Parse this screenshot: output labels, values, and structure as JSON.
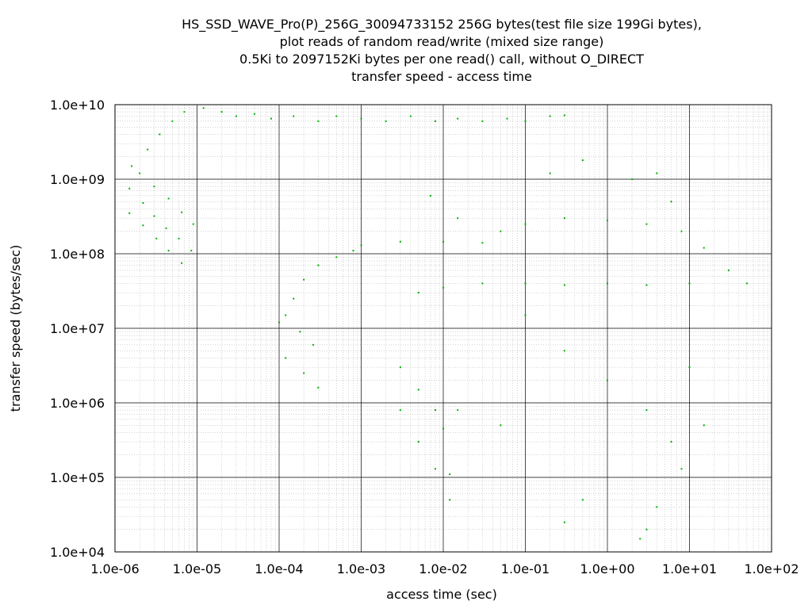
{
  "chart_data": {
    "type": "scatter",
    "title_lines": [
      "HS_SSD_WAVE_Pro(P)_256G_30094733152 256G bytes(test file size 199Gi bytes),",
      "plot reads of random read/write (mixed size range)",
      "0.5Ki to 2097152Ki bytes per one read() call, without O_DIRECT",
      "transfer speed - access time"
    ],
    "xlabel": "access time (sec)",
    "ylabel": "transfer speed (bytes/sec)",
    "x_scale": "log",
    "y_scale": "log",
    "xlim": [
      1e-06,
      100
    ],
    "ylim": [
      10000.0,
      10000000000.0
    ],
    "x_ticks": [
      "1.0e-06",
      "1.0e-05",
      "1.0e-04",
      "1.0e-03",
      "1.0e-02",
      "1.0e-01",
      "1.0e+00",
      "1.0e+01",
      "1.0e+02"
    ],
    "y_ticks": [
      "1.0e+04",
      "1.0e+05",
      "1.0e+06",
      "1.0e+07",
      "1.0e+08",
      "1.0e+09",
      "1.0e+10"
    ],
    "grid": true,
    "point_color": "#00b000",
    "series": [
      {
        "name": "",
        "points": [
          [
            1.5e-06,
            750000000.0
          ],
          [
            2.2e-06,
            480000000.0
          ],
          [
            3e-06,
            320000000.0
          ],
          [
            4.2e-06,
            220000000.0
          ],
          [
            6e-06,
            160000000.0
          ],
          [
            8.5e-06,
            110000000.0
          ],
          [
            1.5e-06,
            350000000.0
          ],
          [
            2.2e-06,
            240000000.0
          ],
          [
            3.2e-06,
            160000000.0
          ],
          [
            4.5e-06,
            110000000.0
          ],
          [
            6.5e-06,
            75000000.0
          ],
          [
            2e-06,
            1200000000.0
          ],
          [
            3e-06,
            800000000.0
          ],
          [
            4.5e-06,
            550000000.0
          ],
          [
            6.5e-06,
            360000000.0
          ],
          [
            9e-06,
            250000000.0
          ],
          [
            1.6e-06,
            1500000000.0
          ],
          [
            2.5e-06,
            2500000000.0
          ],
          [
            3.5e-06,
            4000000000.0
          ],
          [
            5e-06,
            6000000000.0
          ],
          [
            7e-06,
            8000000000.0
          ],
          [
            1.2e-05,
            9000000000.0
          ],
          [
            2e-05,
            8000000000.0
          ],
          [
            3e-05,
            7000000000.0
          ],
          [
            5e-05,
            7500000000.0
          ],
          [
            8e-05,
            6500000000.0
          ],
          [
            0.00015,
            7000000000.0
          ],
          [
            0.0003,
            6000000000.0
          ],
          [
            0.0005,
            7000000000.0
          ],
          [
            0.001,
            6500000000.0
          ],
          [
            0.002,
            6000000000.0
          ],
          [
            0.004,
            7000000000.0
          ],
          [
            0.008,
            6000000000.0
          ],
          [
            0.015,
            6500000000.0
          ],
          [
            0.03,
            6000000000.0
          ],
          [
            0.06,
            6500000000.0
          ],
          [
            0.1,
            6000000000.0
          ],
          [
            0.2,
            7000000000.0
          ],
          [
            0.3,
            7200000000.0
          ],
          [
            0.0001,
            12000000.0
          ],
          [
            0.00015,
            25000000.0
          ],
          [
            0.0002,
            45000000.0
          ],
          [
            0.0003,
            70000000.0
          ],
          [
            0.0005,
            90000000.0
          ],
          [
            0.0008,
            110000000.0
          ],
          [
            0.001,
            130000000.0
          ],
          [
            0.003,
            145000000.0
          ],
          [
            0.01,
            145000000.0
          ],
          [
            0.03,
            140000000.0
          ],
          [
            0.1,
            250000000.0
          ],
          [
            0.3,
            300000000.0
          ],
          [
            1,
            280000000.0
          ],
          [
            3,
            250000000.0
          ],
          [
            8,
            200000000.0
          ],
          [
            15,
            120000000.0
          ],
          [
            30,
            60000000.0
          ],
          [
            50,
            40000000.0
          ],
          [
            0.005,
            30000000.0
          ],
          [
            0.01,
            35000000.0
          ],
          [
            0.03,
            40000000.0
          ],
          [
            0.1,
            40000000.0
          ],
          [
            0.3,
            38000000.0
          ],
          [
            1,
            40000000.0
          ],
          [
            3,
            38000000.0
          ],
          [
            10,
            40000000.0
          ],
          [
            0.00012,
            15000000.0
          ],
          [
            0.00018,
            9000000.0
          ],
          [
            0.00026,
            6000000.0
          ],
          [
            0.00012,
            4000000.0
          ],
          [
            0.0002,
            2500000.0
          ],
          [
            0.0003,
            1600000.0
          ],
          [
            0.003,
            3000000.0
          ],
          [
            0.005,
            1500000.0
          ],
          [
            0.008,
            800000.0
          ],
          [
            0.01,
            450000.0
          ],
          [
            0.012,
            110000.0
          ],
          [
            0.003,
            800000.0
          ],
          [
            0.005,
            300000.0
          ],
          [
            0.008,
            130000.0
          ],
          [
            0.012,
            50000.0
          ],
          [
            0.1,
            15000000.0
          ],
          [
            0.3,
            5000000.0
          ],
          [
            1,
            2000000.0
          ],
          [
            3,
            800000.0
          ],
          [
            6,
            300000.0
          ],
          [
            8,
            130000.0
          ],
          [
            3,
            20000.0
          ],
          [
            2.5,
            15000.0
          ],
          [
            4,
            40000.0
          ],
          [
            15,
            500000.0
          ],
          [
            10,
            3000000.0
          ],
          [
            0.05,
            200000000.0
          ],
          [
            0.2,
            1200000000.0
          ],
          [
            0.5,
            1800000000.0
          ],
          [
            2,
            1000000000.0
          ],
          [
            4,
            1200000000.0
          ],
          [
            6,
            500000000.0
          ],
          [
            0.007,
            600000000.0
          ],
          [
            0.015,
            300000000.0
          ],
          [
            0.05,
            500000.0
          ],
          [
            0.3,
            25000.0
          ],
          [
            0.5,
            50000.0
          ],
          [
            0.015,
            800000.0
          ]
        ]
      }
    ]
  }
}
